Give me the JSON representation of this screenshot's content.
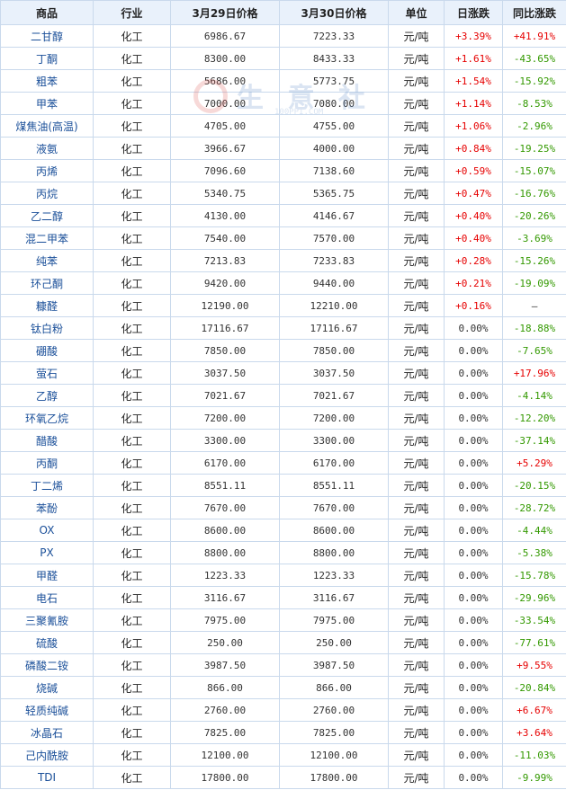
{
  "table": {
    "headers": [
      "商品",
      "行业",
      "3月29日价格",
      "3月30日价格",
      "单位",
      "日涨跌",
      "同比涨跌"
    ],
    "rows": [
      {
        "name": "二甘醇",
        "industry": "化工",
        "p1": "6986.67",
        "p2": "7223.33",
        "unit": "元/吨",
        "daily": "+3.39%",
        "daily_dir": "up",
        "yoy": "+41.91%",
        "yoy_dir": "up"
      },
      {
        "name": "丁酮",
        "industry": "化工",
        "p1": "8300.00",
        "p2": "8433.33",
        "unit": "元/吨",
        "daily": "+1.61%",
        "daily_dir": "up",
        "yoy": "-43.65%",
        "yoy_dir": "down"
      },
      {
        "name": "粗苯",
        "industry": "化工",
        "p1": "5686.00",
        "p2": "5773.75",
        "unit": "元/吨",
        "daily": "+1.54%",
        "daily_dir": "up",
        "yoy": "-15.92%",
        "yoy_dir": "down"
      },
      {
        "name": "甲苯",
        "industry": "化工",
        "p1": "7000.00",
        "p2": "7080.00",
        "unit": "元/吨",
        "daily": "+1.14%",
        "daily_dir": "up",
        "yoy": "-8.53%",
        "yoy_dir": "down"
      },
      {
        "name": "煤焦油(高温)",
        "industry": "化工",
        "p1": "4705.00",
        "p2": "4755.00",
        "unit": "元/吨",
        "daily": "+1.06%",
        "daily_dir": "up",
        "yoy": "-2.96%",
        "yoy_dir": "down"
      },
      {
        "name": "液氨",
        "industry": "化工",
        "p1": "3966.67",
        "p2": "4000.00",
        "unit": "元/吨",
        "daily": "+0.84%",
        "daily_dir": "up",
        "yoy": "-19.25%",
        "yoy_dir": "down"
      },
      {
        "name": "丙烯",
        "industry": "化工",
        "p1": "7096.60",
        "p2": "7138.60",
        "unit": "元/吨",
        "daily": "+0.59%",
        "daily_dir": "up",
        "yoy": "-15.07%",
        "yoy_dir": "down"
      },
      {
        "name": "丙烷",
        "industry": "化工",
        "p1": "5340.75",
        "p2": "5365.75",
        "unit": "元/吨",
        "daily": "+0.47%",
        "daily_dir": "up",
        "yoy": "-16.76%",
        "yoy_dir": "down"
      },
      {
        "name": "乙二醇",
        "industry": "化工",
        "p1": "4130.00",
        "p2": "4146.67",
        "unit": "元/吨",
        "daily": "+0.40%",
        "daily_dir": "up",
        "yoy": "-20.26%",
        "yoy_dir": "down"
      },
      {
        "name": "混二甲苯",
        "industry": "化工",
        "p1": "7540.00",
        "p2": "7570.00",
        "unit": "元/吨",
        "daily": "+0.40%",
        "daily_dir": "up",
        "yoy": "-3.69%",
        "yoy_dir": "down"
      },
      {
        "name": "纯苯",
        "industry": "化工",
        "p1": "7213.83",
        "p2": "7233.83",
        "unit": "元/吨",
        "daily": "+0.28%",
        "daily_dir": "up",
        "yoy": "-15.26%",
        "yoy_dir": "down"
      },
      {
        "name": "环己酮",
        "industry": "化工",
        "p1": "9420.00",
        "p2": "9440.00",
        "unit": "元/吨",
        "daily": "+0.21%",
        "daily_dir": "up",
        "yoy": "-19.09%",
        "yoy_dir": "down"
      },
      {
        "name": "糠醛",
        "industry": "化工",
        "p1": "12190.00",
        "p2": "12210.00",
        "unit": "元/吨",
        "daily": "+0.16%",
        "daily_dir": "up",
        "yoy": "—",
        "yoy_dir": "flat"
      },
      {
        "name": "钛白粉",
        "industry": "化工",
        "p1": "17116.67",
        "p2": "17116.67",
        "unit": "元/吨",
        "daily": "0.00%",
        "daily_dir": "flat",
        "yoy": "-18.88%",
        "yoy_dir": "down"
      },
      {
        "name": "硼酸",
        "industry": "化工",
        "p1": "7850.00",
        "p2": "7850.00",
        "unit": "元/吨",
        "daily": "0.00%",
        "daily_dir": "flat",
        "yoy": "-7.65%",
        "yoy_dir": "down"
      },
      {
        "name": "萤石",
        "industry": "化工",
        "p1": "3037.50",
        "p2": "3037.50",
        "unit": "元/吨",
        "daily": "0.00%",
        "daily_dir": "flat",
        "yoy": "+17.96%",
        "yoy_dir": "up"
      },
      {
        "name": "乙醇",
        "industry": "化工",
        "p1": "7021.67",
        "p2": "7021.67",
        "unit": "元/吨",
        "daily": "0.00%",
        "daily_dir": "flat",
        "yoy": "-4.14%",
        "yoy_dir": "down"
      },
      {
        "name": "环氧乙烷",
        "industry": "化工",
        "p1": "7200.00",
        "p2": "7200.00",
        "unit": "元/吨",
        "daily": "0.00%",
        "daily_dir": "flat",
        "yoy": "-12.20%",
        "yoy_dir": "down"
      },
      {
        "name": "醋酸",
        "industry": "化工",
        "p1": "3300.00",
        "p2": "3300.00",
        "unit": "元/吨",
        "daily": "0.00%",
        "daily_dir": "flat",
        "yoy": "-37.14%",
        "yoy_dir": "down"
      },
      {
        "name": "丙酮",
        "industry": "化工",
        "p1": "6170.00",
        "p2": "6170.00",
        "unit": "元/吨",
        "daily": "0.00%",
        "daily_dir": "flat",
        "yoy": "+5.29%",
        "yoy_dir": "up"
      },
      {
        "name": "丁二烯",
        "industry": "化工",
        "p1": "8551.11",
        "p2": "8551.11",
        "unit": "元/吨",
        "daily": "0.00%",
        "daily_dir": "flat",
        "yoy": "-20.15%",
        "yoy_dir": "down"
      },
      {
        "name": "苯酚",
        "industry": "化工",
        "p1": "7670.00",
        "p2": "7670.00",
        "unit": "元/吨",
        "daily": "0.00%",
        "daily_dir": "flat",
        "yoy": "-28.72%",
        "yoy_dir": "down"
      },
      {
        "name": "OX",
        "industry": "化工",
        "p1": "8600.00",
        "p2": "8600.00",
        "unit": "元/吨",
        "daily": "0.00%",
        "daily_dir": "flat",
        "yoy": "-4.44%",
        "yoy_dir": "down"
      },
      {
        "name": "PX",
        "industry": "化工",
        "p1": "8800.00",
        "p2": "8800.00",
        "unit": "元/吨",
        "daily": "0.00%",
        "daily_dir": "flat",
        "yoy": "-5.38%",
        "yoy_dir": "down"
      },
      {
        "name": "甲醛",
        "industry": "化工",
        "p1": "1223.33",
        "p2": "1223.33",
        "unit": "元/吨",
        "daily": "0.00%",
        "daily_dir": "flat",
        "yoy": "-15.78%",
        "yoy_dir": "down"
      },
      {
        "name": "电石",
        "industry": "化工",
        "p1": "3116.67",
        "p2": "3116.67",
        "unit": "元/吨",
        "daily": "0.00%",
        "daily_dir": "flat",
        "yoy": "-29.96%",
        "yoy_dir": "down"
      },
      {
        "name": "三聚氰胺",
        "industry": "化工",
        "p1": "7975.00",
        "p2": "7975.00",
        "unit": "元/吨",
        "daily": "0.00%",
        "daily_dir": "flat",
        "yoy": "-33.54%",
        "yoy_dir": "down"
      },
      {
        "name": "硫酸",
        "industry": "化工",
        "p1": "250.00",
        "p2": "250.00",
        "unit": "元/吨",
        "daily": "0.00%",
        "daily_dir": "flat",
        "yoy": "-77.61%",
        "yoy_dir": "down"
      },
      {
        "name": "磷酸二铵",
        "industry": "化工",
        "p1": "3987.50",
        "p2": "3987.50",
        "unit": "元/吨",
        "daily": "0.00%",
        "daily_dir": "flat",
        "yoy": "+9.55%",
        "yoy_dir": "up"
      },
      {
        "name": "烧碱",
        "industry": "化工",
        "p1": "866.00",
        "p2": "866.00",
        "unit": "元/吨",
        "daily": "0.00%",
        "daily_dir": "flat",
        "yoy": "-20.84%",
        "yoy_dir": "down"
      },
      {
        "name": "轻质纯碱",
        "industry": "化工",
        "p1": "2760.00",
        "p2": "2760.00",
        "unit": "元/吨",
        "daily": "0.00%",
        "daily_dir": "flat",
        "yoy": "+6.67%",
        "yoy_dir": "up"
      },
      {
        "name": "冰晶石",
        "industry": "化工",
        "p1": "7825.00",
        "p2": "7825.00",
        "unit": "元/吨",
        "daily": "0.00%",
        "daily_dir": "flat",
        "yoy": "+3.64%",
        "yoy_dir": "up"
      },
      {
        "name": "己内酰胺",
        "industry": "化工",
        "p1": "12100.00",
        "p2": "12100.00",
        "unit": "元/吨",
        "daily": "0.00%",
        "daily_dir": "flat",
        "yoy": "-11.03%",
        "yoy_dir": "down"
      },
      {
        "name": "TDI",
        "industry": "化工",
        "p1": "17800.00",
        "p2": "17800.00",
        "unit": "元/吨",
        "daily": "0.00%",
        "daily_dir": "flat",
        "yoy": "-9.99%",
        "yoy_dir": "down"
      }
    ]
  },
  "watermark": {
    "text": "生 意 社",
    "url": "100PPI.COM"
  },
  "colors": {
    "up": "#e60000",
    "down": "#339900",
    "header_bg": "#e9f1fb",
    "border": "#c9d9ec",
    "name_link": "#1a4f99"
  }
}
